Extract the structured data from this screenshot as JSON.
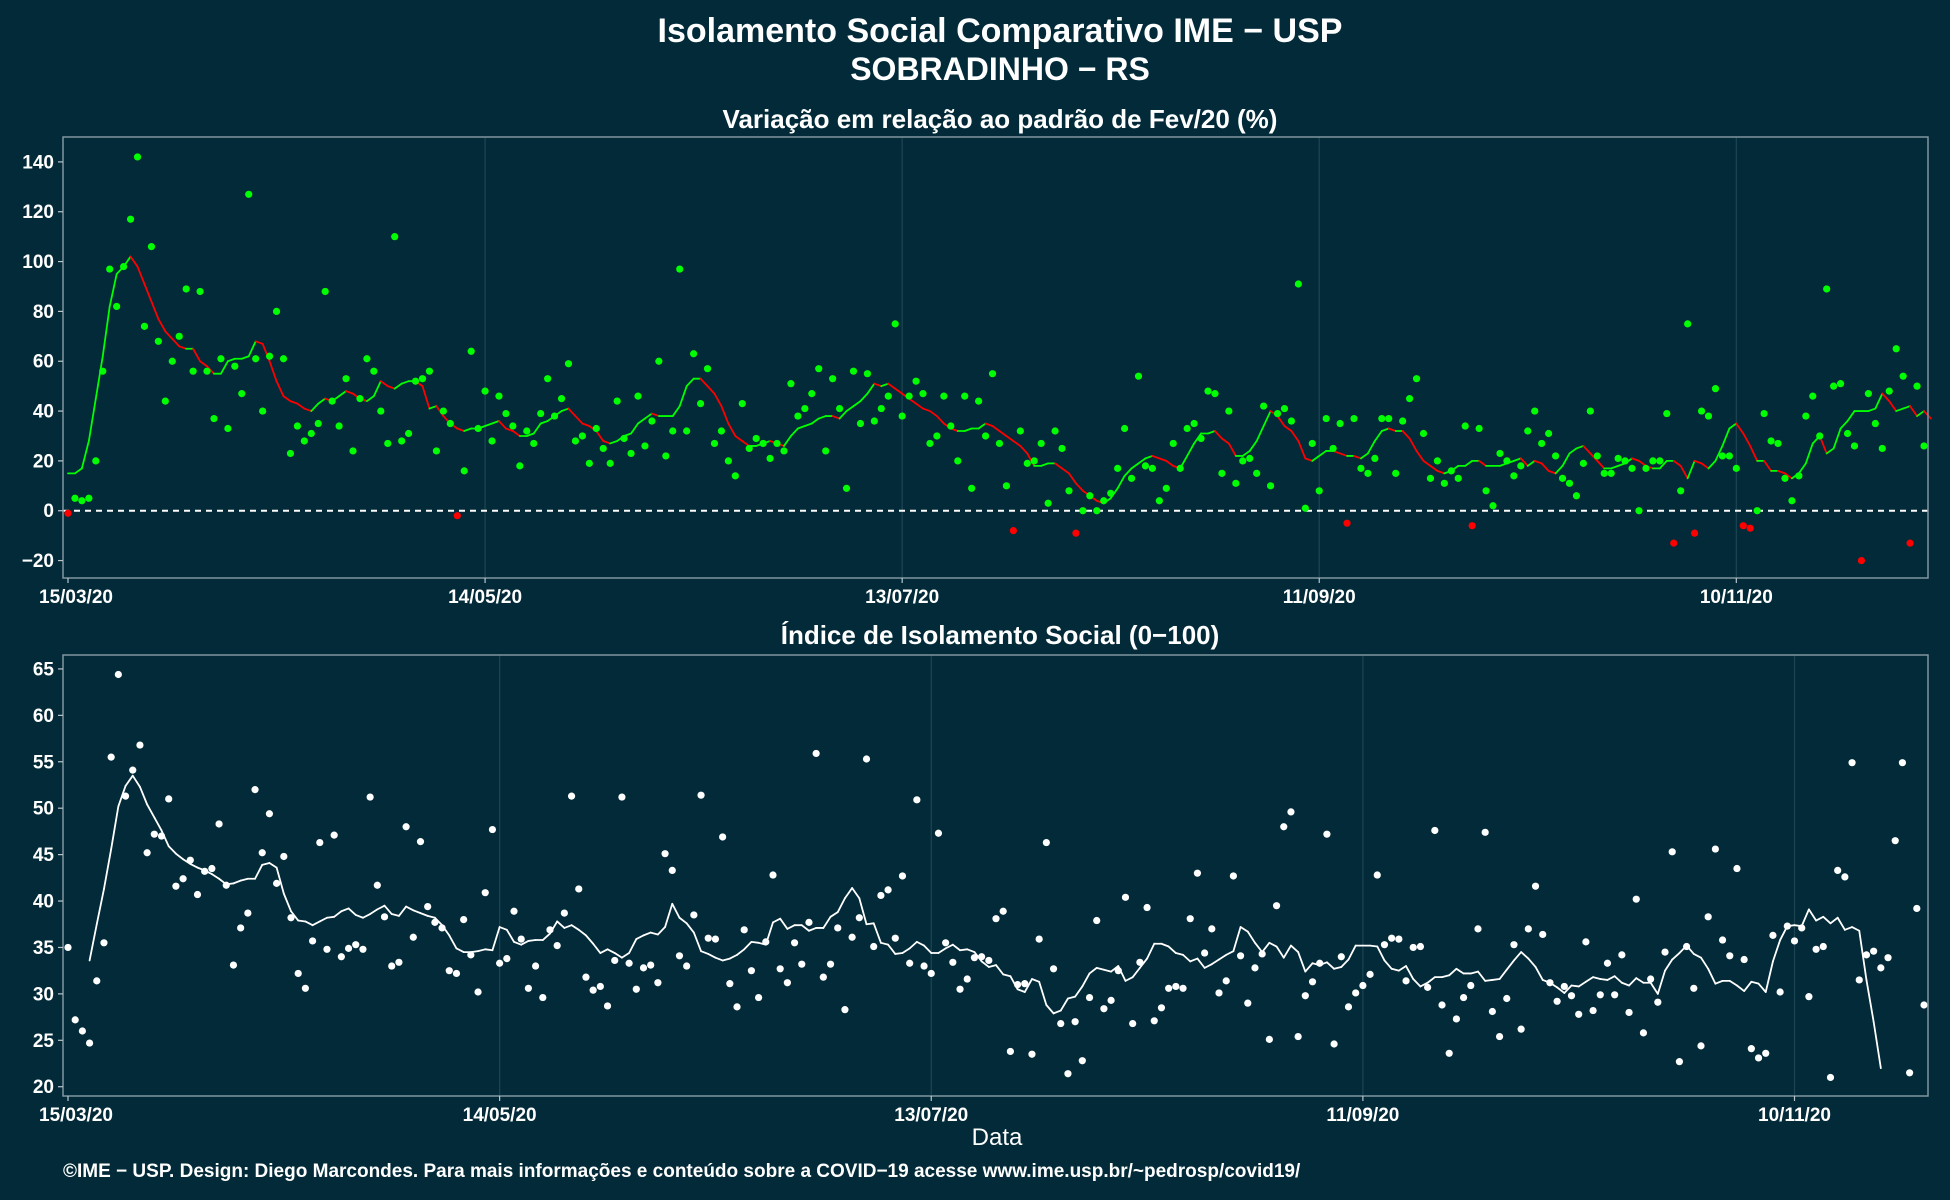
{
  "title": "Isolamento Social Comparativo IME − USP",
  "subtitle": "SOBRADINHO − RS",
  "xlabel": "Data",
  "footer": "©IME − USP. Design: Diego Marcondes. Para mais informações e conteúdo sobre a COVID−19 acesse www.ime.usp.br/~pedrosp/covid19/",
  "colors": {
    "background": "#022a38",
    "positive": "#00ff00",
    "negative": "#ff0000",
    "index": "#ffffff",
    "baseline": "#ffffff"
  },
  "chart_data": [
    {
      "type": "scatter",
      "title": "Variação em relação ao padrão de Fev/20 (%)",
      "x_start": "15/03/20",
      "x_tick_labels": [
        "15/03/20",
        "14/05/20",
        "13/07/20",
        "11/09/20",
        "10/11/20"
      ],
      "y_tick_labels": [
        "140",
        "120",
        "100",
        "80",
        "60",
        "40",
        "20",
        "0",
        "−20"
      ],
      "ylim": [
        -27,
        150
      ],
      "baseline": 0,
      "grid": true,
      "series": [
        {
          "style": "points",
          "values": [
            -1,
            5,
            4,
            5,
            20,
            56,
            97,
            82,
            98,
            117,
            142,
            74,
            106,
            68,
            44,
            60,
            70,
            89,
            56,
            88,
            56,
            37,
            61,
            33,
            58,
            47,
            127,
            61,
            40,
            62,
            80,
            61,
            23,
            34,
            28,
            31,
            35,
            88,
            44,
            34,
            53,
            24,
            45,
            61,
            56,
            40,
            27,
            110,
            28,
            31,
            52,
            53,
            56,
            24,
            40,
            35,
            -2,
            16,
            64,
            33,
            48,
            28,
            46,
            39,
            34,
            18,
            32,
            27,
            39,
            53,
            38,
            45,
            59,
            28,
            30,
            19,
            33,
            25,
            19,
            44,
            29,
            23,
            46,
            26,
            36,
            60,
            22,
            32,
            97,
            32,
            63,
            43,
            57,
            27,
            32,
            20,
            14,
            43,
            25,
            29,
            27,
            21,
            27,
            24,
            51,
            38,
            41,
            47,
            57,
            24,
            53,
            41,
            9,
            56,
            35,
            55,
            36,
            41,
            46,
            75,
            38,
            46,
            52,
            47,
            27,
            30,
            46,
            34,
            20,
            46,
            9,
            44,
            30,
            55,
            27,
            10,
            -8,
            32,
            19,
            20,
            27,
            3,
            32,
            25,
            8,
            -9,
            0,
            6,
            0,
            4,
            7,
            17,
            33,
            13,
            54,
            18,
            17,
            4,
            9,
            27,
            17,
            33,
            35,
            29,
            48,
            47,
            15,
            40,
            11,
            20,
            21,
            15,
            42,
            10,
            39,
            41,
            36,
            91,
            1,
            27,
            8,
            37,
            25,
            35,
            -5,
            37,
            17,
            15,
            21,
            37,
            37,
            15,
            36,
            45,
            53,
            31,
            13,
            20,
            11,
            16,
            13,
            34,
            -6,
            33,
            8,
            2,
            23,
            20,
            14,
            18,
            32,
            40,
            27,
            31,
            22,
            13,
            11,
            6,
            19,
            40,
            22,
            15,
            15,
            21,
            20,
            17,
            0,
            17,
            20,
            20,
            39,
            -13,
            8,
            75,
            -9,
            40,
            38,
            49,
            22,
            22,
            17,
            -6,
            -7,
            0,
            39,
            28,
            27,
            13,
            4,
            14,
            38,
            46,
            30,
            89,
            50,
            51,
            31,
            26,
            -20,
            47,
            35,
            25,
            48,
            65,
            54,
            -13,
            50,
            26
          ]
        },
        {
          "style": "line",
          "values": [
            15,
            15,
            17,
            28,
            45,
            62,
            82,
            95,
            98,
            102,
            98,
            91,
            84,
            77,
            72,
            69,
            66,
            65,
            65,
            60,
            58,
            55,
            55,
            60,
            61,
            61,
            62,
            68,
            67,
            60,
            52,
            46,
            44,
            43,
            41,
            40,
            43,
            45,
            44,
            46,
            48,
            47,
            45,
            44,
            46,
            52,
            50,
            49,
            51,
            52,
            52,
            50,
            41,
            42,
            38,
            35,
            33,
            32,
            33,
            33,
            34,
            35,
            36,
            33,
            32,
            30,
            30,
            31,
            35,
            36,
            38,
            40,
            41,
            38,
            35,
            34,
            32,
            28,
            27,
            28,
            30,
            31,
            35,
            37,
            39,
            38,
            38,
            38,
            42,
            50,
            53,
            53,
            50,
            47,
            42,
            35,
            30,
            28,
            26,
            26,
            27,
            28,
            27,
            26,
            30,
            33,
            34,
            35,
            37,
            38,
            38,
            37,
            40,
            42,
            44,
            47,
            51,
            50,
            51,
            49,
            47,
            45,
            43,
            41,
            40,
            38,
            35,
            33,
            32,
            32,
            33,
            33,
            35,
            34,
            32,
            30,
            28,
            26,
            23,
            18,
            18,
            19,
            19,
            17,
            15,
            11,
            8,
            6,
            4,
            3,
            5,
            9,
            14,
            17,
            19,
            21,
            22,
            21,
            20,
            18,
            17,
            22,
            27,
            31,
            31,
            32,
            29,
            27,
            22,
            22,
            24,
            28,
            34,
            40,
            38,
            34,
            32,
            28,
            21,
            20,
            22,
            24,
            24,
            23,
            22,
            22,
            21,
            23,
            28,
            32,
            33,
            32,
            32,
            29,
            24,
            20,
            18,
            16,
            15,
            16,
            18,
            18,
            20,
            20,
            18,
            18,
            18,
            19,
            20,
            21,
            18,
            20,
            19,
            16,
            15,
            18,
            23,
            25,
            26,
            23,
            20,
            17,
            17,
            18,
            19,
            21,
            20,
            18,
            17,
            17,
            20,
            20,
            18,
            13,
            20,
            19,
            17,
            20,
            26,
            33,
            35,
            31,
            26,
            20,
            20,
            16,
            16,
            15,
            13,
            15,
            19,
            27,
            30,
            23,
            25,
            33,
            36,
            40,
            40,
            40,
            41,
            47,
            44,
            40,
            41,
            42,
            38,
            40,
            37
          ]
        }
      ]
    },
    {
      "type": "scatter",
      "title": "Índice de Isolamento Social (0−100)",
      "x_start": "15/03/20",
      "xlabel": "Data",
      "x_tick_labels": [
        "15/03/20",
        "14/05/20",
        "13/07/20",
        "11/09/20",
        "10/11/20"
      ],
      "y_tick_labels": [
        "65",
        "60",
        "55",
        "50",
        "45",
        "40",
        "35",
        "30",
        "25",
        "20"
      ],
      "ylim": [
        19,
        66.5
      ],
      "grid": true,
      "series": [
        {
          "style": "points",
          "values": [
            35,
            27.2,
            26,
            24.7,
            31.4,
            35.5,
            55.5,
            64.4,
            51.3,
            54.1,
            56.8,
            45.2,
            47.2,
            47,
            51,
            41.6,
            42.4,
            44.4,
            40.7,
            43.2,
            43.5,
            48.3,
            41.7,
            33.1,
            37.1,
            38.7,
            52,
            45.2,
            49.4,
            41.9,
            44.8,
            38.2,
            32.2,
            30.6,
            35.7,
            46.3,
            34.8,
            47.1,
            34,
            34.9,
            35.3,
            34.8,
            51.2,
            41.7,
            38.3,
            33,
            33.4,
            48,
            36.1,
            46.4,
            39.4,
            37.7,
            37.1,
            32.5,
            32.2,
            38,
            34.2,
            30.2,
            40.9,
            47.7,
            33.3,
            33.8,
            38.9,
            35.9,
            30.6,
            33,
            29.6,
            36.9,
            35.2,
            38.7,
            51.3,
            41.3,
            31.8,
            30.4,
            30.8,
            28.7,
            33.6,
            51.2,
            33.3,
            30.5,
            32.8,
            33.1,
            31.2,
            45.1,
            43.3,
            34.1,
            33,
            38.5,
            51.4,
            36,
            35.9,
            46.9,
            31.1,
            28.6,
            36.9,
            32.5,
            29.6,
            35.6,
            42.8,
            32.7,
            31.2,
            35.5,
            33.2,
            37.7,
            55.9,
            31.8,
            33.2,
            37.1,
            28.3,
            36.1,
            38.2,
            55.3,
            35.1,
            40.6,
            41.2,
            36,
            42.7,
            33.3,
            50.9,
            33,
            32.2,
            47.3,
            35.5,
            33.4,
            30.5,
            31.6,
            33.9,
            34,
            33.6,
            38.1,
            38.9,
            23.8,
            31,
            31.1,
            23.5,
            35.9,
            46.3,
            32.7,
            26.8,
            21.4,
            27,
            22.8,
            29.6,
            37.9,
            28.4,
            29.3,
            32.5,
            40.4,
            26.8,
            33.4,
            39.3,
            27.1,
            28.5,
            30.6,
            30.8,
            30.6,
            38.1,
            43,
            34.4,
            37,
            30.1,
            31.4,
            42.7,
            34.1,
            29,
            32.8,
            34.3,
            25.1,
            39.5,
            48,
            49.6,
            25.4,
            29.8,
            31.3,
            33.3,
            47.2,
            24.6,
            34,
            28.6,
            30.1,
            30.9,
            32.1,
            42.8,
            35.3,
            36,
            35.9,
            31.4,
            35,
            35.1,
            30.7,
            47.6,
            28.8,
            23.6,
            27.3,
            29.6,
            30.9,
            37,
            47.4,
            28.1,
            25.4,
            29.5,
            35.3,
            26.2,
            37,
            41.6,
            36.4,
            31.2,
            29.2,
            30.8,
            29.8,
            27.8,
            35.6,
            28.2,
            29.9,
            33.3,
            29.9,
            34.2,
            28,
            40.2,
            25.8,
            31.6,
            29.1,
            34.5,
            45.3,
            22.7,
            35.1,
            30.6,
            24.4,
            38.3,
            45.6,
            35.8,
            34.1,
            43.5,
            33.7,
            24.1,
            23.1,
            23.6,
            36.3,
            30.2,
            37.3,
            35.7,
            37.1,
            29.7,
            34.8,
            35.1,
            21,
            43.3,
            42.6,
            54.9,
            31.5,
            34.2,
            34.6,
            32.8,
            33.9,
            46.5,
            54.9,
            21.5,
            39.2,
            28.8
          ]
        },
        {
          "style": "line",
          "values": [
            null,
            null,
            null,
            33.6,
            37.5,
            41.3,
            45.6,
            50.2,
            52.4,
            53.5,
            52.3,
            50.4,
            49,
            47.6,
            45.9,
            45.1,
            44.5,
            44,
            43.6,
            43.3,
            42.9,
            42.4,
            41.8,
            41.9,
            42.2,
            42.4,
            42.4,
            43.9,
            44.1,
            43.6,
            40.8,
            38.9,
            37.9,
            37.8,
            37.4,
            37.8,
            38.2,
            38.3,
            38.9,
            39.2,
            38.5,
            38.2,
            38.6,
            39.1,
            39.5,
            38.6,
            38.4,
            39.4,
            39,
            38.7,
            38.4,
            38.2,
            37.4,
            36.3,
            34.9,
            34.5,
            34.5,
            34.6,
            34.8,
            34.7,
            37.2,
            36.9,
            35.6,
            35.3,
            35.7,
            35.8,
            35.8,
            36.5,
            37.8,
            37.1,
            37.4,
            36.9,
            36.3,
            35.4,
            34.4,
            34.8,
            34.4,
            33.9,
            34.4,
            35.9,
            36.3,
            36.6,
            36.4,
            37.2,
            39.7,
            38.2,
            37.6,
            36.6,
            34.6,
            34.3,
            33.9,
            33.6,
            33.8,
            34.2,
            34.8,
            35.6,
            35.5,
            35.3,
            37.7,
            38.1,
            37,
            37.4,
            37.4,
            36.8,
            37.1,
            37.1,
            38.3,
            38.8,
            40.3,
            41.4,
            40.3,
            37.5,
            37.6,
            35.5,
            35.3,
            34.3,
            34.4,
            34.9,
            35.6,
            35.2,
            34.4,
            34.4,
            34.9,
            35.3,
            34.7,
            34.8,
            34.5,
            33.5,
            32.9,
            33.1,
            32.1,
            31.9,
            30.5,
            30.2,
            31.6,
            31.3,
            28.8,
            27.9,
            28.2,
            29.5,
            29.7,
            30.8,
            32.2,
            32.8,
            32.6,
            32.4,
            33,
            31.4,
            31.8,
            32.8,
            33.8,
            35.4,
            35.4,
            35.1,
            34.4,
            34.2,
            33.5,
            33.8,
            32.8,
            33.2,
            33.7,
            34.2,
            34.6,
            37.2,
            36.7,
            35.5,
            34.5,
            35.5,
            35.1,
            33.9,
            35.2,
            34.5,
            32.4,
            33.3,
            33.1,
            33.4,
            32.7,
            32.9,
            33.7,
            35.2,
            35.2,
            35.2,
            35.1,
            33.6,
            32.7,
            32.5,
            33,
            31.6,
            30.8,
            31.2,
            31.8,
            31.8,
            32,
            32.7,
            32.2,
            32.2,
            32.4,
            31.4,
            31.5,
            31.6,
            32.6,
            33.6,
            34.5,
            33.8,
            32.9,
            31.5,
            31.2,
            30.7,
            30.1,
            30.9,
            30.8,
            31.3,
            31.8,
            31.6,
            31.5,
            31.9,
            31.2,
            30.9,
            31.7,
            31.2,
            31.2,
            30,
            32.5,
            33.7,
            34.4,
            35.2,
            34.3,
            33.9,
            32.7,
            31.1,
            31.4,
            31.4,
            30.9,
            30.3,
            31.3,
            31.1,
            30.2,
            33.5,
            35.8,
            37.3,
            37.4,
            37.3,
            39.1,
            37.9,
            38.3,
            37.6,
            38.2,
            36.9,
            37.2,
            36.8,
            31.5,
            27,
            22
          ]
        }
      ]
    }
  ]
}
